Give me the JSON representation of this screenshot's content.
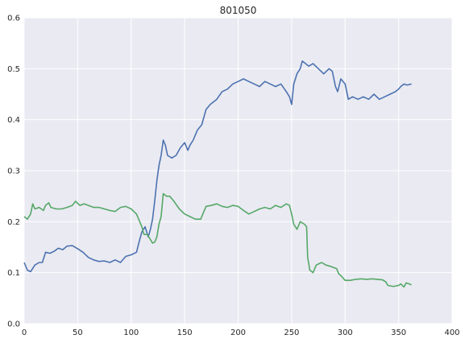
{
  "chart_data": {
    "type": "line",
    "title": "801050",
    "xlabel": "",
    "ylabel": "",
    "xlim": [
      0,
      400
    ],
    "ylim": [
      0,
      0.6
    ],
    "x_ticks": [
      "0",
      "50",
      "100",
      "150",
      "200",
      "250",
      "300",
      "350",
      "400"
    ],
    "y_ticks": [
      "0.0",
      "0.1",
      "0.2",
      "0.3",
      "0.4",
      "0.5",
      "0.6"
    ],
    "grid": true,
    "background": "#eaeaf2",
    "series": [
      {
        "color": "#4c72b0",
        "points": [
          [
            0,
            0.12
          ],
          [
            3,
            0.105
          ],
          [
            6,
            0.102
          ],
          [
            10,
            0.115
          ],
          [
            14,
            0.12
          ],
          [
            17,
            0.12
          ],
          [
            20,
            0.14
          ],
          [
            24,
            0.138
          ],
          [
            28,
            0.142
          ],
          [
            32,
            0.148
          ],
          [
            36,
            0.145
          ],
          [
            40,
            0.152
          ],
          [
            45,
            0.153
          ],
          [
            50,
            0.147
          ],
          [
            55,
            0.14
          ],
          [
            60,
            0.13
          ],
          [
            65,
            0.125
          ],
          [
            70,
            0.122
          ],
          [
            75,
            0.123
          ],
          [
            80,
            0.12
          ],
          [
            85,
            0.125
          ],
          [
            90,
            0.12
          ],
          [
            95,
            0.132
          ],
          [
            100,
            0.135
          ],
          [
            105,
            0.14
          ],
          [
            108,
            0.165
          ],
          [
            110,
            0.18
          ],
          [
            113,
            0.19
          ],
          [
            116,
            0.17
          ],
          [
            118,
            0.185
          ],
          [
            120,
            0.205
          ],
          [
            122,
            0.24
          ],
          [
            124,
            0.28
          ],
          [
            126,
            0.31
          ],
          [
            128,
            0.33
          ],
          [
            130,
            0.36
          ],
          [
            132,
            0.35
          ],
          [
            134,
            0.33
          ],
          [
            138,
            0.325
          ],
          [
            142,
            0.33
          ],
          [
            146,
            0.345
          ],
          [
            150,
            0.355
          ],
          [
            153,
            0.34
          ],
          [
            155,
            0.35
          ],
          [
            158,
            0.36
          ],
          [
            162,
            0.38
          ],
          [
            166,
            0.39
          ],
          [
            170,
            0.42
          ],
          [
            174,
            0.43
          ],
          [
            180,
            0.44
          ],
          [
            185,
            0.455
          ],
          [
            190,
            0.46
          ],
          [
            195,
            0.47
          ],
          [
            200,
            0.475
          ],
          [
            205,
            0.48
          ],
          [
            210,
            0.475
          ],
          [
            215,
            0.47
          ],
          [
            220,
            0.465
          ],
          [
            225,
            0.475
          ],
          [
            230,
            0.47
          ],
          [
            235,
            0.465
          ],
          [
            240,
            0.47
          ],
          [
            245,
            0.455
          ],
          [
            248,
            0.445
          ],
          [
            250,
            0.43
          ],
          [
            252,
            0.47
          ],
          [
            255,
            0.49
          ],
          [
            258,
            0.5
          ],
          [
            260,
            0.515
          ],
          [
            263,
            0.51
          ],
          [
            266,
            0.505
          ],
          [
            270,
            0.51
          ],
          [
            275,
            0.5
          ],
          [
            280,
            0.49
          ],
          [
            285,
            0.5
          ],
          [
            288,
            0.495
          ],
          [
            291,
            0.465
          ],
          [
            293,
            0.455
          ],
          [
            296,
            0.48
          ],
          [
            300,
            0.47
          ],
          [
            303,
            0.44
          ],
          [
            307,
            0.445
          ],
          [
            312,
            0.44
          ],
          [
            317,
            0.445
          ],
          [
            322,
            0.44
          ],
          [
            327,
            0.45
          ],
          [
            332,
            0.44
          ],
          [
            337,
            0.445
          ],
          [
            342,
            0.45
          ],
          [
            347,
            0.455
          ],
          [
            350,
            0.46
          ],
          [
            352,
            0.465
          ],
          [
            355,
            0.47
          ],
          [
            358,
            0.468
          ],
          [
            362,
            0.47
          ]
        ]
      },
      {
        "color": "#55a868",
        "points": [
          [
            0,
            0.21
          ],
          [
            3,
            0.205
          ],
          [
            6,
            0.215
          ],
          [
            8,
            0.235
          ],
          [
            10,
            0.225
          ],
          [
            14,
            0.228
          ],
          [
            18,
            0.222
          ],
          [
            20,
            0.232
          ],
          [
            23,
            0.237
          ],
          [
            25,
            0.228
          ],
          [
            30,
            0.225
          ],
          [
            35,
            0.225
          ],
          [
            40,
            0.228
          ],
          [
            45,
            0.232
          ],
          [
            48,
            0.24
          ],
          [
            52,
            0.232
          ],
          [
            56,
            0.235
          ],
          [
            60,
            0.232
          ],
          [
            65,
            0.228
          ],
          [
            70,
            0.228
          ],
          [
            75,
            0.225
          ],
          [
            80,
            0.222
          ],
          [
            85,
            0.22
          ],
          [
            90,
            0.228
          ],
          [
            95,
            0.23
          ],
          [
            100,
            0.225
          ],
          [
            105,
            0.215
          ],
          [
            108,
            0.2
          ],
          [
            110,
            0.19
          ],
          [
            112,
            0.175
          ],
          [
            115,
            0.175
          ],
          [
            118,
            0.165
          ],
          [
            120,
            0.158
          ],
          [
            122,
            0.16
          ],
          [
            124,
            0.17
          ],
          [
            126,
            0.195
          ],
          [
            128,
            0.21
          ],
          [
            130,
            0.255
          ],
          [
            133,
            0.25
          ],
          [
            136,
            0.25
          ],
          [
            140,
            0.24
          ],
          [
            145,
            0.225
          ],
          [
            150,
            0.215
          ],
          [
            155,
            0.21
          ],
          [
            160,
            0.205
          ],
          [
            165,
            0.205
          ],
          [
            170,
            0.23
          ],
          [
            175,
            0.232
          ],
          [
            180,
            0.235
          ],
          [
            185,
            0.23
          ],
          [
            190,
            0.228
          ],
          [
            195,
            0.232
          ],
          [
            200,
            0.23
          ],
          [
            205,
            0.222
          ],
          [
            210,
            0.215
          ],
          [
            215,
            0.22
          ],
          [
            220,
            0.225
          ],
          [
            225,
            0.228
          ],
          [
            230,
            0.225
          ],
          [
            235,
            0.232
          ],
          [
            240,
            0.228
          ],
          [
            245,
            0.235
          ],
          [
            248,
            0.232
          ],
          [
            250,
            0.215
          ],
          [
            252,
            0.195
          ],
          [
            255,
            0.185
          ],
          [
            258,
            0.2
          ],
          [
            262,
            0.195
          ],
          [
            264,
            0.19
          ],
          [
            265,
            0.13
          ],
          [
            267,
            0.105
          ],
          [
            270,
            0.1
          ],
          [
            273,
            0.115
          ],
          [
            278,
            0.12
          ],
          [
            282,
            0.115
          ],
          [
            287,
            0.112
          ],
          [
            292,
            0.108
          ],
          [
            294,
            0.098
          ],
          [
            297,
            0.092
          ],
          [
            300,
            0.085
          ],
          [
            305,
            0.085
          ],
          [
            310,
            0.087
          ],
          [
            315,
            0.088
          ],
          [
            320,
            0.087
          ],
          [
            325,
            0.088
          ],
          [
            330,
            0.087
          ],
          [
            335,
            0.086
          ],
          [
            338,
            0.082
          ],
          [
            340,
            0.075
          ],
          [
            345,
            0.073
          ],
          [
            350,
            0.075
          ],
          [
            352,
            0.078
          ],
          [
            355,
            0.072
          ],
          [
            357,
            0.08
          ],
          [
            360,
            0.078
          ],
          [
            362,
            0.076
          ]
        ]
      }
    ]
  }
}
